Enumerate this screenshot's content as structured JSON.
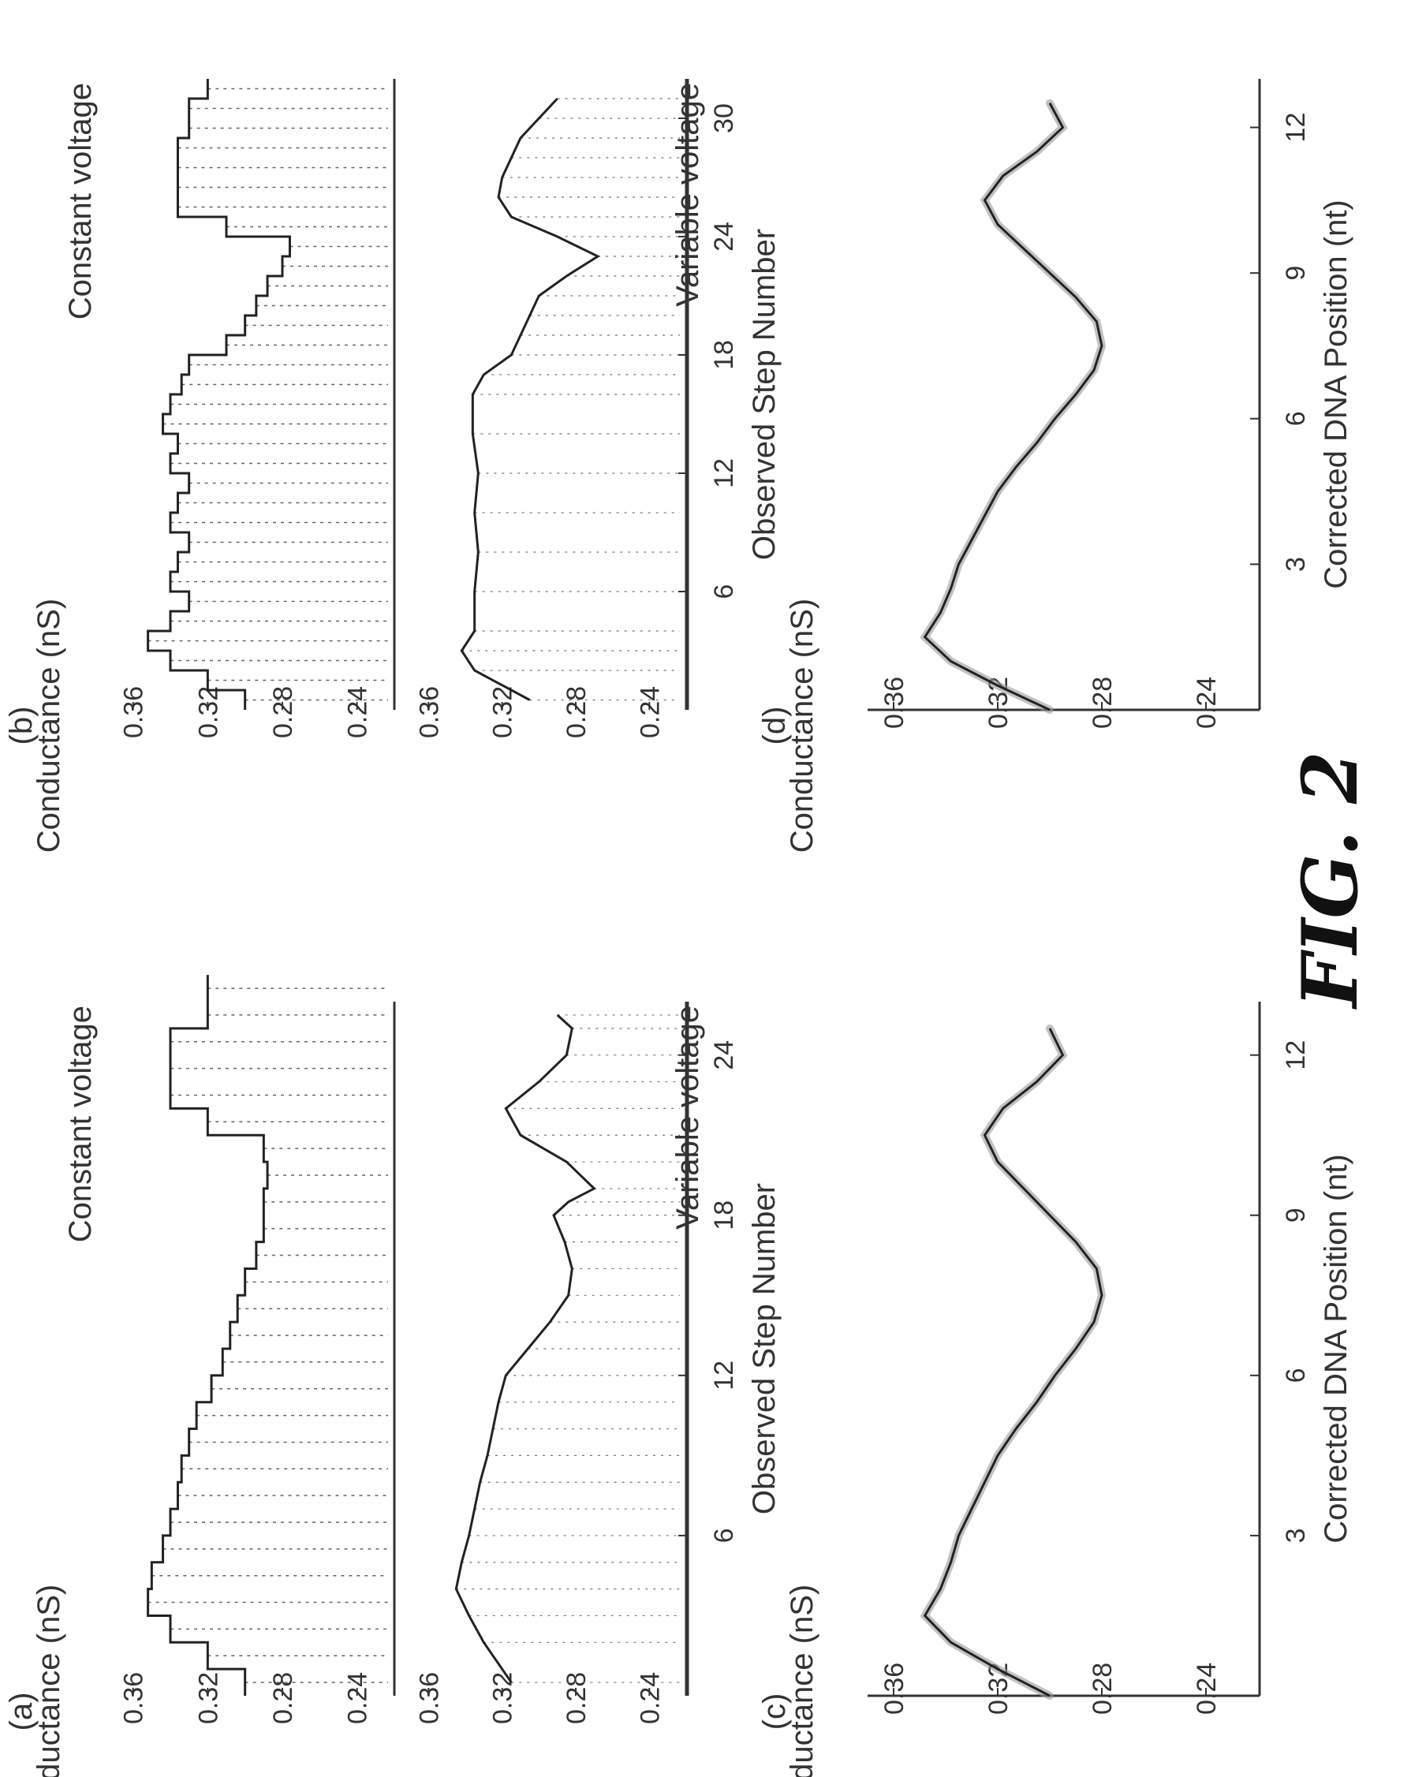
{
  "figure_label": "FIG. 2",
  "chart_data": [
    {
      "panel": "(a)",
      "type": "line",
      "xlabel": "Observed Step Number",
      "ylabel": "Conductance (nS)",
      "xlim": [
        0,
        26
      ],
      "xticks": [
        6,
        12,
        18,
        24
      ],
      "annotations": [
        "Constant voltage",
        "Variable voltage"
      ],
      "subplots": [
        {
          "name": "Constant voltage",
          "ylim": [
            0.22,
            0.37
          ],
          "yticks": [
            0.36,
            0.32,
            0.28,
            0.24
          ],
          "steps": [
            0.3,
            0.32,
            0.34,
            0.352,
            0.35,
            0.344,
            0.34,
            0.336,
            0.334,
            0.33,
            0.326,
            0.318,
            0.312,
            0.308,
            0.304,
            0.3,
            0.294,
            0.29,
            0.29,
            0.288,
            0.29,
            0.32,
            0.34,
            0.34,
            0.34,
            0.32,
            0.32
          ]
        },
        {
          "name": "Variable voltage",
          "ylim": [
            0.22,
            0.37
          ],
          "yticks": [
            0.36,
            0.32,
            0.28,
            0.24
          ],
          "x": [
            0.5,
            2,
            3,
            4,
            5,
            6,
            7,
            8,
            9,
            10,
            11,
            12,
            13,
            14,
            15,
            16,
            17,
            18,
            18.5,
            19,
            20,
            21,
            22,
            23,
            24,
            25,
            25.5
          ],
          "y": [
            0.315,
            0.33,
            0.338,
            0.345,
            0.342,
            0.338,
            0.335,
            0.332,
            0.328,
            0.325,
            0.322,
            0.318,
            0.306,
            0.294,
            0.284,
            0.282,
            0.286,
            0.292,
            0.284,
            0.27,
            0.285,
            0.31,
            0.318,
            0.3,
            0.285,
            0.282,
            0.29
          ]
        }
      ]
    },
    {
      "panel": "(b)",
      "type": "line",
      "xlabel": "Observed Step Number",
      "ylabel": "Conductance (nS)",
      "xlim": [
        0,
        32
      ],
      "xticks": [
        6,
        12,
        18,
        24,
        30
      ],
      "annotations": [
        "Constant voltage",
        "Variable voltage"
      ],
      "subplots": [
        {
          "name": "Constant voltage",
          "ylim": [
            0.22,
            0.37
          ],
          "yticks": [
            0.36,
            0.32,
            0.28,
            0.24
          ],
          "steps": [
            0.3,
            0.32,
            0.34,
            0.352,
            0.34,
            0.33,
            0.34,
            0.336,
            0.33,
            0.34,
            0.336,
            0.33,
            0.34,
            0.336,
            0.344,
            0.34,
            0.334,
            0.33,
            0.31,
            0.3,
            0.294,
            0.288,
            0.28,
            0.276,
            0.31,
            0.336,
            0.336,
            0.336,
            0.336,
            0.33,
            0.33,
            0.32
          ]
        },
        {
          "name": "Variable voltage",
          "ylim": [
            0.22,
            0.37
          ],
          "yticks": [
            0.36,
            0.32,
            0.28,
            0.24
          ],
          "x": [
            0.5,
            2,
            3,
            4,
            6,
            8,
            10,
            12,
            14,
            16,
            17,
            18,
            19,
            20,
            21,
            22,
            23,
            24,
            25,
            26,
            27,
            28,
            29,
            30,
            31
          ],
          "y": [
            0.305,
            0.335,
            0.342,
            0.335,
            0.335,
            0.333,
            0.335,
            0.333,
            0.336,
            0.336,
            0.33,
            0.315,
            0.31,
            0.305,
            0.3,
            0.285,
            0.268,
            0.29,
            0.315,
            0.322,
            0.32,
            0.315,
            0.31,
            0.3,
            0.29
          ]
        }
      ]
    },
    {
      "panel": "(c)",
      "type": "line",
      "xlabel": "Corrected DNA Position (nt)",
      "ylabel": "Conductance (nS)",
      "xlim": [
        0,
        13
      ],
      "xticks": [
        3,
        6,
        9,
        12
      ],
      "ylim": [
        0.22,
        0.37
      ],
      "yticks": [
        0.36,
        0.32,
        0.28,
        0.24
      ],
      "x": [
        0,
        0.5,
        1,
        1.5,
        2,
        2.5,
        3,
        3.5,
        4,
        4.5,
        5,
        5.5,
        6,
        6.5,
        7,
        7.5,
        8,
        8.5,
        9,
        9.5,
        10,
        10.5,
        11,
        11.5,
        12,
        12.5
      ],
      "y": [
        0.3,
        0.32,
        0.338,
        0.348,
        0.342,
        0.338,
        0.335,
        0.33,
        0.325,
        0.32,
        0.313,
        0.305,
        0.298,
        0.29,
        0.283,
        0.28,
        0.282,
        0.29,
        0.3,
        0.31,
        0.32,
        0.325,
        0.318,
        0.305,
        0.295,
        0.3
      ]
    },
    {
      "panel": "(d)",
      "type": "line",
      "xlabel": "Corrected DNA Position (nt)",
      "ylabel": "Conductance (nS)",
      "xlim": [
        0,
        13
      ],
      "xticks": [
        3,
        6,
        9,
        12
      ],
      "ylim": [
        0.22,
        0.37
      ],
      "yticks": [
        0.36,
        0.32,
        0.28,
        0.24
      ],
      "x": [
        0,
        0.5,
        1,
        1.5,
        2,
        2.5,
        3,
        3.5,
        4,
        4.5,
        5,
        5.5,
        6,
        6.5,
        7,
        7.5,
        8,
        8.5,
        9,
        9.5,
        10,
        10.5,
        11,
        11.5,
        12,
        12.5
      ],
      "y": [
        0.3,
        0.32,
        0.338,
        0.348,
        0.342,
        0.338,
        0.335,
        0.33,
        0.325,
        0.32,
        0.313,
        0.305,
        0.298,
        0.29,
        0.283,
        0.28,
        0.282,
        0.29,
        0.3,
        0.31,
        0.32,
        0.325,
        0.318,
        0.305,
        0.295,
        0.3
      ]
    }
  ]
}
